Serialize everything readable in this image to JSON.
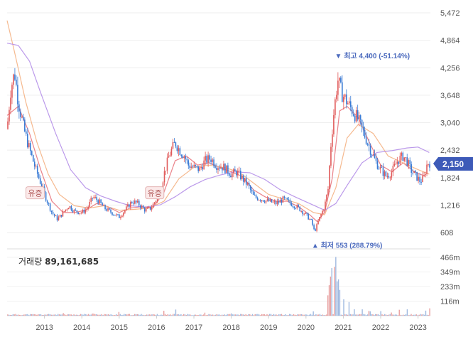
{
  "chart_data": {
    "type": "candlestick",
    "price_axis": {
      "ticks": [
        "5,472",
        "4,864",
        "4,256",
        "3,648",
        "3,040",
        "2,432",
        "1,824",
        "1,216",
        "608"
      ],
      "ylim": [
        608,
        5472
      ]
    },
    "x_axis": {
      "ticks": [
        "2013",
        "2014",
        "2015",
        "2016",
        "2017",
        "2018",
        "2019",
        "2020",
        "2021",
        "2022",
        "2023"
      ]
    },
    "current_price": "2,150",
    "high": {
      "label": "최고 4,400 (-51.14%)",
      "value": 4400,
      "date": "2020-09"
    },
    "low": {
      "label": "최저 553 (288.79%)",
      "value": 553,
      "date": "2020-03"
    },
    "events": [
      {
        "label": "유증",
        "date": "2012-08"
      },
      {
        "label": "유증",
        "date": "2015-10"
      }
    ],
    "price_path": [
      [
        2012.0,
        2900
      ],
      [
        2012.1,
        3800
      ],
      [
        2012.2,
        4150
      ],
      [
        2012.3,
        3500
      ],
      [
        2012.45,
        2900
      ],
      [
        2012.6,
        2450
      ],
      [
        2012.75,
        2050
      ],
      [
        2012.9,
        1700
      ],
      [
        2013.05,
        1350
      ],
      [
        2013.2,
        1050
      ],
      [
        2013.35,
        900
      ],
      [
        2013.5,
        1050
      ],
      [
        2013.65,
        1200
      ],
      [
        2013.8,
        1080
      ],
      [
        2014.0,
        1050
      ],
      [
        2014.15,
        1150
      ],
      [
        2014.3,
        1400
      ],
      [
        2014.45,
        1300
      ],
      [
        2014.6,
        1150
      ],
      [
        2014.8,
        1050
      ],
      [
        2015.0,
        950
      ],
      [
        2015.2,
        1150
      ],
      [
        2015.35,
        1300
      ],
      [
        2015.5,
        1250
      ],
      [
        2015.7,
        1100
      ],
      [
        2015.85,
        1150
      ],
      [
        2016.0,
        1350
      ],
      [
        2016.1,
        1500
      ],
      [
        2016.2,
        1900
      ],
      [
        2016.35,
        2350
      ],
      [
        2016.5,
        2600
      ],
      [
        2016.6,
        2450
      ],
      [
        2016.75,
        2300
      ],
      [
        2016.85,
        2100
      ],
      [
        2017.0,
        2050
      ],
      [
        2017.15,
        2000
      ],
      [
        2017.3,
        2200
      ],
      [
        2017.45,
        2250
      ],
      [
        2017.6,
        2100
      ],
      [
        2017.8,
        2050
      ],
      [
        2018.0,
        1900
      ],
      [
        2018.15,
        1950
      ],
      [
        2018.3,
        1800
      ],
      [
        2018.45,
        1650
      ],
      [
        2018.6,
        1400
      ],
      [
        2018.8,
        1350
      ],
      [
        2019.0,
        1300
      ],
      [
        2019.2,
        1250
      ],
      [
        2019.4,
        1350
      ],
      [
        2019.6,
        1250
      ],
      [
        2019.8,
        1150
      ],
      [
        2020.0,
        1000
      ],
      [
        2020.15,
        850
      ],
      [
        2020.23,
        620
      ],
      [
        2020.35,
        900
      ],
      [
        2020.5,
        1200
      ],
      [
        2020.6,
        1600
      ],
      [
        2020.65,
        2400
      ],
      [
        2020.75,
        3300
      ],
      [
        2020.85,
        4000
      ],
      [
        2020.95,
        3700
      ],
      [
        2021.1,
        3500
      ],
      [
        2021.25,
        3300
      ],
      [
        2021.4,
        3100
      ],
      [
        2021.55,
        2800
      ],
      [
        2021.7,
        2500
      ],
      [
        2021.85,
        2200
      ],
      [
        2022.0,
        2000
      ],
      [
        2022.15,
        1850
      ],
      [
        2022.3,
        1950
      ],
      [
        2022.45,
        2200
      ],
      [
        2022.6,
        2300
      ],
      [
        2022.7,
        2200
      ],
      [
        2022.8,
        2000
      ],
      [
        2022.95,
        1850
      ],
      [
        2023.05,
        1750
      ],
      [
        2023.15,
        1800
      ],
      [
        2023.25,
        2150
      ]
    ],
    "moving_averages": [
      {
        "color": "#e8747c",
        "points": [
          [
            2012.0,
            3200
          ],
          [
            2012.3,
            3400
          ],
          [
            2012.6,
            2800
          ],
          [
            2012.9,
            2000
          ],
          [
            2013.2,
            1300
          ],
          [
            2013.5,
            1050
          ],
          [
            2013.8,
            1050
          ],
          [
            2014.1,
            1100
          ],
          [
            2014.4,
            1250
          ],
          [
            2014.7,
            1180
          ],
          [
            2015.0,
            1050
          ],
          [
            2015.3,
            1150
          ],
          [
            2015.6,
            1180
          ],
          [
            2015.9,
            1150
          ],
          [
            2016.2,
            1500
          ],
          [
            2016.5,
            2200
          ],
          [
            2016.8,
            2300
          ],
          [
            2017.1,
            2100
          ],
          [
            2017.4,
            2150
          ],
          [
            2017.7,
            2050
          ],
          [
            2018.0,
            1950
          ],
          [
            2018.3,
            1850
          ],
          [
            2018.6,
            1550
          ],
          [
            2018.9,
            1400
          ],
          [
            2019.2,
            1300
          ],
          [
            2019.5,
            1300
          ],
          [
            2019.8,
            1180
          ],
          [
            2020.1,
            1000
          ],
          [
            2020.3,
            850
          ],
          [
            2020.5,
            1050
          ],
          [
            2020.7,
            1800
          ],
          [
            2020.9,
            3300
          ],
          [
            2021.1,
            3400
          ],
          [
            2021.4,
            3150
          ],
          [
            2021.7,
            2600
          ],
          [
            2022.0,
            2100
          ],
          [
            2022.3,
            1950
          ],
          [
            2022.6,
            2150
          ],
          [
            2022.9,
            1950
          ],
          [
            2023.2,
            1850
          ]
        ]
      },
      {
        "color": "#f4b183",
        "points": [
          [
            2012.0,
            5300
          ],
          [
            2012.2,
            4600
          ],
          [
            2012.5,
            3500
          ],
          [
            2012.8,
            2600
          ],
          [
            2013.1,
            1900
          ],
          [
            2013.4,
            1450
          ],
          [
            2013.8,
            1200
          ],
          [
            2014.2,
            1150
          ],
          [
            2014.6,
            1200
          ],
          [
            2015.0,
            1100
          ],
          [
            2015.4,
            1120
          ],
          [
            2015.8,
            1150
          ],
          [
            2016.2,
            1300
          ],
          [
            2016.6,
            1800
          ],
          [
            2017.0,
            2050
          ],
          [
            2017.4,
            2100
          ],
          [
            2017.8,
            2050
          ],
          [
            2018.2,
            1950
          ],
          [
            2018.6,
            1700
          ],
          [
            2019.0,
            1450
          ],
          [
            2019.4,
            1350
          ],
          [
            2019.8,
            1250
          ],
          [
            2020.2,
            1050
          ],
          [
            2020.5,
            1000
          ],
          [
            2020.8,
            1600
          ],
          [
            2021.1,
            2700
          ],
          [
            2021.4,
            3000
          ],
          [
            2021.8,
            2800
          ],
          [
            2022.2,
            2300
          ],
          [
            2022.6,
            2150
          ],
          [
            2023.0,
            2000
          ],
          [
            2023.3,
            1900
          ]
        ]
      },
      {
        "color": "#b48ee8",
        "points": [
          [
            2012.0,
            4800
          ],
          [
            2012.3,
            4750
          ],
          [
            2012.6,
            4400
          ],
          [
            2012.9,
            3700
          ],
          [
            2013.3,
            2800
          ],
          [
            2013.7,
            2000
          ],
          [
            2014.1,
            1600
          ],
          [
            2014.5,
            1420
          ],
          [
            2014.9,
            1300
          ],
          [
            2015.3,
            1200
          ],
          [
            2015.7,
            1170
          ],
          [
            2016.1,
            1220
          ],
          [
            2016.5,
            1400
          ],
          [
            2016.9,
            1620
          ],
          [
            2017.3,
            1780
          ],
          [
            2017.7,
            1880
          ],
          [
            2018.1,
            1950
          ],
          [
            2018.5,
            1930
          ],
          [
            2018.9,
            1780
          ],
          [
            2019.3,
            1560
          ],
          [
            2019.7,
            1400
          ],
          [
            2020.1,
            1250
          ],
          [
            2020.5,
            1100
          ],
          [
            2020.8,
            1250
          ],
          [
            2021.1,
            1650
          ],
          [
            2021.5,
            2150
          ],
          [
            2021.9,
            2380
          ],
          [
            2022.3,
            2420
          ],
          [
            2022.7,
            2480
          ],
          [
            2023.0,
            2500
          ],
          [
            2023.3,
            2380
          ]
        ]
      }
    ],
    "volume": {
      "title": "거래량",
      "value": "89,161,685",
      "ticks": [
        "466m",
        "349m",
        "233m",
        "116m"
      ],
      "ylim": [
        0,
        533
      ],
      "spikes": [
        [
          2013.5,
          25
        ],
        [
          2014.3,
          20
        ],
        [
          2015.0,
          30
        ],
        [
          2016.2,
          40
        ],
        [
          2016.5,
          55
        ],
        [
          2017.3,
          25
        ],
        [
          2018.0,
          20
        ],
        [
          2020.2,
          35
        ],
        [
          2020.6,
          150
        ],
        [
          2020.62,
          230
        ],
        [
          2020.65,
          310
        ],
        [
          2020.7,
          360
        ],
        [
          2020.75,
          420
        ],
        [
          2020.8,
          450
        ],
        [
          2020.85,
          300
        ],
        [
          2020.9,
          200
        ],
        [
          2021.0,
          160
        ],
        [
          2021.15,
          110
        ],
        [
          2021.3,
          60
        ],
        [
          2021.5,
          50
        ],
        [
          2021.7,
          40
        ],
        [
          2022.0,
          35
        ],
        [
          2022.3,
          30
        ],
        [
          2022.5,
          45
        ],
        [
          2022.7,
          55
        ],
        [
          2023.2,
          40
        ],
        [
          2023.3,
          70
        ]
      ]
    },
    "colors": {
      "up": "#e05a5a",
      "down": "#3a7bd5",
      "badge": "#3d5ab8",
      "high_low_text": "#4a69bd"
    }
  }
}
